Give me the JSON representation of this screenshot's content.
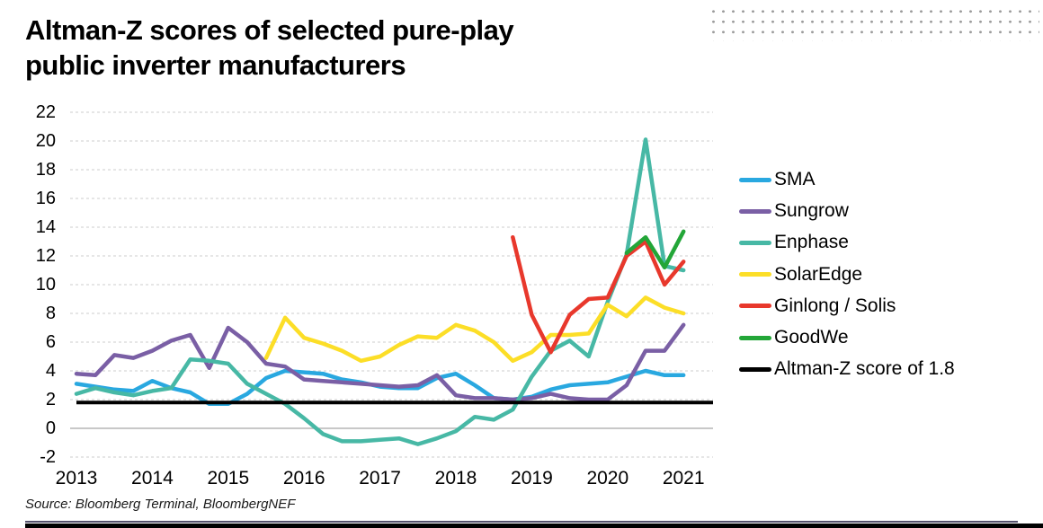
{
  "title": {
    "line1": "Altman-Z scores of selected pure-play",
    "line2": "public inverter manufacturers"
  },
  "footer": {
    "source": "Source: Bloomberg Terminal, BloombergNEF"
  },
  "colors": {
    "sma": "#29a8e0",
    "sungrow": "#7a5fa5",
    "enphase": "#47b8a5",
    "solaredge": "#fcde27",
    "ginlong": "#e8382c",
    "goodwe": "#23a638",
    "threshold": "#000000",
    "grid_dashed": "#cdcdcd",
    "grid_zero": "#b5b5b5",
    "title_text": "#000000",
    "dot_pattern": "#9c9c9c"
  },
  "chart_data": {
    "type": "line",
    "x_unit": "quarterly",
    "x_start": "2013Q1",
    "x_end": "2021Q1",
    "x_tick_labels": [
      "2013",
      "2014",
      "2015",
      "2016",
      "2017",
      "2018",
      "2019",
      "2020",
      "2021"
    ],
    "y_ticks": [
      22,
      20,
      18,
      16,
      14,
      12,
      10,
      8,
      6,
      4,
      2,
      0,
      -2
    ],
    "ylim": [
      -2,
      22
    ],
    "grid": "horizontal-dashed, zero-line-solid",
    "legend_position": "right",
    "threshold": {
      "label": "Altman-Z score of 1.8",
      "value": 1.8,
      "color_key": "threshold"
    },
    "series": [
      {
        "name": "SMA",
        "color_key": "sma",
        "start_quarter_index": 0,
        "values": [
          3.1,
          2.9,
          2.7,
          2.6,
          3.3,
          2.8,
          2.5,
          1.7,
          1.7,
          2.4,
          3.5,
          4.0,
          3.9,
          3.8,
          3.4,
          3.2,
          2.9,
          2.8,
          2.8,
          3.5,
          3.8,
          3.0,
          2.1,
          2.0,
          2.2,
          2.7,
          3.0,
          3.1,
          3.2,
          3.6,
          4.0,
          3.7,
          3.7
        ]
      },
      {
        "name": "Sungrow",
        "color_key": "sungrow",
        "start_quarter_index": 0,
        "values": [
          3.8,
          3.7,
          5.1,
          4.9,
          5.4,
          6.1,
          6.5,
          4.2,
          7.0,
          6.0,
          4.5,
          4.3,
          3.4,
          3.3,
          3.2,
          3.1,
          3.0,
          2.9,
          3.0,
          3.7,
          2.3,
          2.1,
          2.1,
          2.0,
          2.1,
          2.4,
          2.1,
          2.0,
          2.0,
          3.0,
          5.4,
          5.4,
          7.2
        ]
      },
      {
        "name": "Enphase",
        "color_key": "enphase",
        "start_quarter_index": 0,
        "values": [
          2.4,
          2.8,
          2.5,
          2.3,
          2.6,
          2.8,
          4.8,
          4.7,
          4.5,
          3.1,
          2.4,
          1.7,
          0.7,
          -0.4,
          -0.9,
          -0.9,
          -0.8,
          -0.7,
          -1.1,
          -0.7,
          -0.2,
          0.8,
          0.6,
          1.3,
          3.6,
          5.4,
          6.1,
          5.0,
          8.8,
          12.1,
          20.1,
          11.3,
          11.0
        ]
      },
      {
        "name": "SolarEdge",
        "color_key": "solaredge",
        "start_quarter_index": 10,
        "values": [
          4.9,
          7.7,
          6.3,
          5.9,
          5.4,
          4.7,
          5.0,
          5.8,
          6.4,
          6.3,
          7.2,
          6.8,
          6.0,
          4.7,
          5.3,
          6.5,
          6.5,
          6.6,
          8.6,
          7.8,
          9.1,
          8.4,
          8.0
        ]
      },
      {
        "name": "Ginlong / Solis",
        "color_key": "ginlong",
        "start_quarter_index": 23,
        "values": [
          13.3,
          7.9,
          5.3,
          7.9,
          9.0,
          9.1,
          12.0,
          13.0,
          10.0,
          11.6
        ]
      },
      {
        "name": "GoodWe",
        "color_key": "goodwe",
        "start_quarter_index": 29,
        "values": [
          12.2,
          13.3,
          11.2,
          13.7
        ]
      }
    ]
  }
}
